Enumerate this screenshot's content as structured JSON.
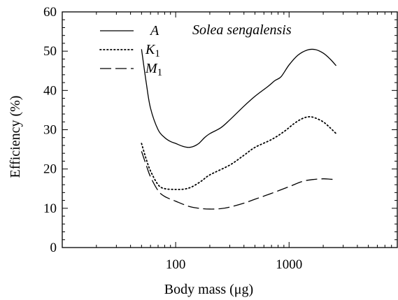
{
  "chart_data": {
    "type": "line",
    "title": "Solea sengalensis",
    "xlabel": "Body mass (μg)",
    "ylabel": "Efficiency (%)",
    "xscale": "log",
    "xlim": [
      10,
      9000
    ],
    "ylim": [
      0,
      60
    ],
    "yticks": [
      0,
      10,
      20,
      30,
      40,
      50,
      60
    ],
    "xticks": [
      {
        "value": 100,
        "label": "100"
      },
      {
        "value": 1000,
        "label": "1000"
      }
    ],
    "legend_position": "top-left",
    "grid": false,
    "series": [
      {
        "name": "A",
        "sub": "",
        "style": "solid",
        "x": [
          50,
          55,
          60,
          70,
          80,
          90,
          100,
          115,
          130,
          145,
          160,
          180,
          200,
          250,
          300,
          400,
          500,
          650,
          750,
          850,
          1000,
          1200,
          1450,
          1700,
          2000,
          2300,
          2600
        ],
        "y": [
          50.5,
          42,
          35.5,
          30,
          28,
          27,
          26.5,
          25.8,
          25.5,
          25.8,
          26.5,
          28,
          29,
          30.5,
          32.5,
          36,
          38.5,
          41,
          42.5,
          43.5,
          46.5,
          49,
          50.3,
          50.4,
          49.5,
          48,
          46.3
        ]
      },
      {
        "name": "K",
        "sub": "1",
        "style": "dotted",
        "x": [
          50,
          55,
          60,
          70,
          80,
          100,
          120,
          140,
          170,
          200,
          300,
          400,
          500,
          700,
          900,
          1100,
          1300,
          1500,
          1700,
          2000,
          2300,
          2600
        ],
        "y": [
          26.5,
          22.5,
          19.5,
          16,
          15,
          14.8,
          14.9,
          15.5,
          17,
          18.5,
          21,
          23.5,
          25.5,
          27.5,
          29.5,
          31.5,
          32.8,
          33.3,
          33,
          32,
          30.5,
          29
        ]
      },
      {
        "name": "M",
        "sub": "1",
        "style": "dashed",
        "x": [
          50,
          55,
          60,
          70,
          80,
          100,
          130,
          160,
          200,
          250,
          300,
          400,
          500,
          700,
          1000,
          1300,
          1600,
          2000,
          2300,
          2600
        ],
        "y": [
          24.5,
          21,
          18,
          14.5,
          13,
          11.8,
          10.5,
          10,
          9.8,
          9.9,
          10.3,
          11.3,
          12.3,
          13.8,
          15.5,
          16.8,
          17.3,
          17.5,
          17.4,
          17.3
        ]
      }
    ]
  }
}
